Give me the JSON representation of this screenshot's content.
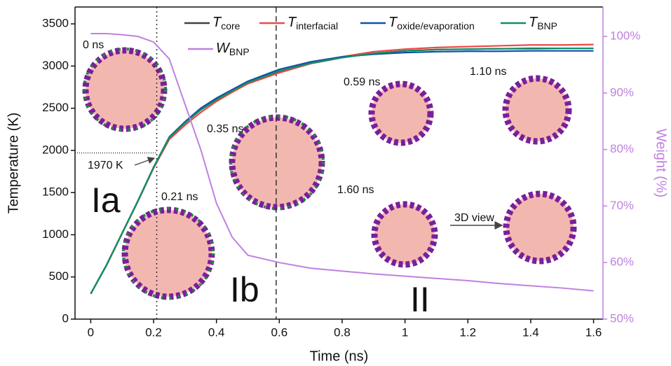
{
  "chart_data": {
    "type": "line",
    "x_label": "Time (ns)",
    "y_label": "Temperature (K)",
    "y2_label": "Weight (%)",
    "x": [
      0,
      0.05,
      0.1,
      0.15,
      0.2,
      0.25,
      0.3,
      0.35,
      0.4,
      0.45,
      0.5,
      0.6,
      0.7,
      0.8,
      0.9,
      1.0,
      1.1,
      1.2,
      1.3,
      1.4,
      1.5,
      1.6
    ],
    "series": [
      {
        "name": [
          "T",
          "core"
        ],
        "color": "#404040",
        "values": [
          300,
          640,
          1020,
          1400,
          1800,
          2150,
          2330,
          2480,
          2600,
          2700,
          2800,
          2930,
          3030,
          3100,
          3150,
          3180,
          3195,
          3200,
          3205,
          3210,
          3210,
          3210
        ]
      },
      {
        "name": [
          "T",
          "interfacial"
        ],
        "color": "#f04848",
        "values": [
          300,
          635,
          1015,
          1395,
          1790,
          2130,
          2300,
          2450,
          2580,
          2690,
          2790,
          2920,
          3030,
          3110,
          3170,
          3200,
          3220,
          3230,
          3240,
          3250,
          3250,
          3255
        ]
      },
      {
        "name": [
          "T",
          "oxide/evaporation"
        ],
        "color": "#1050b0",
        "values": [
          300,
          640,
          1020,
          1400,
          1800,
          2160,
          2340,
          2500,
          2620,
          2720,
          2820,
          2960,
          3050,
          3110,
          3140,
          3160,
          3170,
          3175,
          3175,
          3180,
          3180,
          3180
        ]
      },
      {
        "name": [
          "T",
          "BNP"
        ],
        "color": "#109060",
        "values": [
          300,
          640,
          1020,
          1400,
          1800,
          2150,
          2325,
          2480,
          2600,
          2705,
          2805,
          2940,
          3035,
          3100,
          3150,
          3180,
          3195,
          3200,
          3205,
          3205,
          3210,
          3210
        ]
      },
      {
        "name": [
          "W",
          "BNP"
        ],
        "color": "#c080e0",
        "axis": "y2",
        "values": [
          100.5,
          100.5,
          100.3,
          100,
          99,
          96,
          88,
          80,
          70.5,
          64.5,
          61.3,
          60,
          59,
          58.5,
          58,
          57.6,
          57.2,
          56.8,
          56.3,
          55.9,
          55.5,
          55.0
        ]
      }
    ],
    "xlim": [
      -0.05,
      1.63
    ],
    "xticks": [
      0,
      0.2,
      0.4,
      0.6,
      0.8,
      1,
      1.2,
      1.4,
      1.6
    ],
    "ylim": [
      0,
      3700
    ],
    "yticks": [
      0,
      500,
      1000,
      1500,
      2000,
      2500,
      3000,
      3500
    ],
    "y2lim": [
      50,
      105.2
    ],
    "y2ticks": [
      {
        "value": 50,
        "label": "50%"
      },
      {
        "value": 60,
        "label": "60%"
      },
      {
        "value": 70,
        "label": "70%"
      },
      {
        "value": 80,
        "label": "80%"
      },
      {
        "value": 90,
        "label": "90%"
      },
      {
        "value": 100,
        "label": "100%"
      }
    ],
    "vlines": [
      0.21,
      0.59
    ],
    "hline": {
      "value": 1970,
      "label": "1970 K"
    },
    "stages": [
      "Ia",
      "Ib",
      "II"
    ],
    "snapshots": [
      "0 ns",
      "0.21 ns",
      "0.35 ns",
      "0.59 ns",
      "1.10 ns",
      "1.60 ns",
      "3D view"
    ]
  }
}
